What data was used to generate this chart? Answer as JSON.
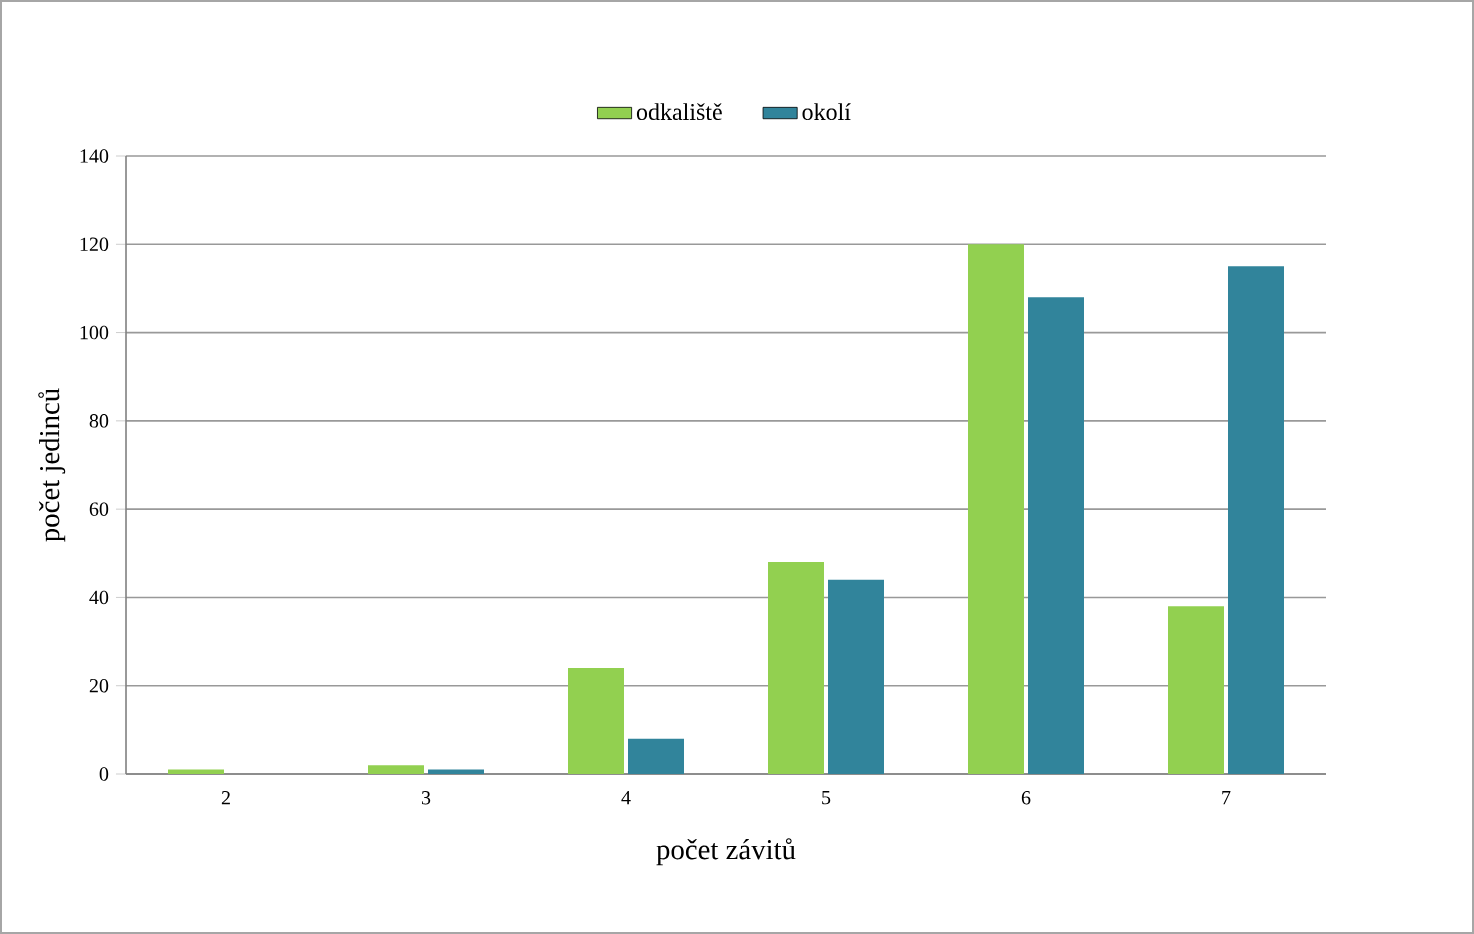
{
  "chart_data": {
    "type": "bar",
    "xlabel": "počet závitů",
    "ylabel": "počet jedinců",
    "categories": [
      "2",
      "3",
      "4",
      "5",
      "6",
      "7"
    ],
    "series": [
      {
        "name": "odkaliště",
        "color": "#92d050",
        "values": [
          1,
          2,
          24,
          48,
          120,
          38
        ]
      },
      {
        "name": "okolí",
        "color": "#31849b",
        "values": [
          0,
          1,
          8,
          44,
          108,
          115
        ]
      }
    ],
    "ylim": [
      0,
      140
    ],
    "yticks": [
      0,
      20,
      40,
      60,
      80,
      100,
      120,
      140
    ],
    "grid": "y",
    "legend": "top"
  }
}
